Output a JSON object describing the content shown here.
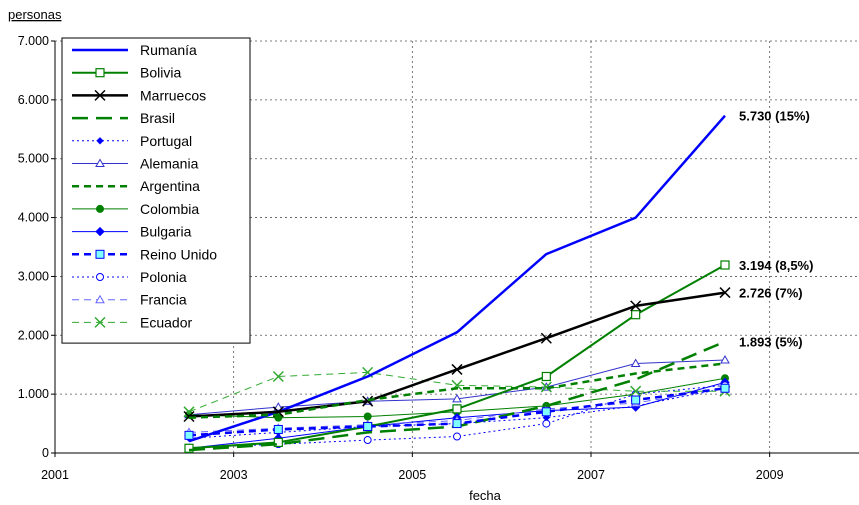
{
  "chart_data": {
    "type": "line",
    "y_unit": "personas",
    "xlabel": "fecha",
    "xlim": [
      2001,
      2010
    ],
    "ylim": [
      0,
      7000
    ],
    "x_ticks": [
      2001,
      2003,
      2005,
      2007,
      2009
    ],
    "x_tick_labels": [
      "2001",
      "2003",
      "2005",
      "2007",
      "2009"
    ],
    "y_ticks": [
      0,
      1000,
      2000,
      3000,
      4000,
      5000,
      6000,
      7000
    ],
    "y_tick_labels": [
      "0",
      "1.000",
      "2.000",
      "3.000",
      "4.000",
      "5.000",
      "6.000",
      "7.000"
    ],
    "grid": "dotted",
    "legend_position": "top-left",
    "x": [
      2002.5,
      2003.5,
      2004.5,
      2005.5,
      2006.5,
      2007.5,
      2008.5
    ],
    "series": [
      {
        "name": "Rumanía",
        "color": "#0000ff",
        "style": "solid",
        "marker": "none",
        "width": 2.5,
        "values": [
          200,
          700,
          1300,
          2050,
          3380,
          4000,
          5730
        ]
      },
      {
        "name": "Bolivia",
        "color": "#008000",
        "style": "solid",
        "marker": "square-open",
        "width": 2,
        "values": [
          80,
          180,
          450,
          750,
          1300,
          2350,
          3194
        ]
      },
      {
        "name": "Marruecos",
        "color": "#000000",
        "style": "solid",
        "marker": "x",
        "width": 2.5,
        "values": [
          620,
          700,
          880,
          1420,
          1950,
          2500,
          2726
        ]
      },
      {
        "name": "Brasil",
        "color": "#008000",
        "style": "longdash",
        "marker": "none",
        "width": 2.5,
        "values": [
          50,
          150,
          350,
          450,
          800,
          1250,
          1893
        ]
      },
      {
        "name": "Portugal",
        "color": "#0000ff",
        "style": "dotted",
        "marker": "diamond-small",
        "width": 1,
        "values": [
          250,
          350,
          450,
          500,
          600,
          800,
          1100
        ]
      },
      {
        "name": "Alemania",
        "color": "#3333cc",
        "style": "solid",
        "marker": "triangle-open",
        "width": 1,
        "values": [
          650,
          780,
          880,
          920,
          1120,
          1520,
          1580
        ]
      },
      {
        "name": "Argentina",
        "color": "#008000",
        "style": "dashed",
        "marker": "none",
        "width": 2.5,
        "values": [
          600,
          650,
          900,
          1100,
          1100,
          1350,
          1520
        ]
      },
      {
        "name": "Colombia",
        "color": "#008000",
        "style": "solid",
        "marker": "circle",
        "width": 1,
        "values": [
          650,
          600,
          620,
          700,
          800,
          1000,
          1270
        ]
      },
      {
        "name": "Bulgaria",
        "color": "#0000ff",
        "style": "solid",
        "marker": "diamond",
        "width": 1,
        "values": [
          80,
          250,
          450,
          600,
          720,
          780,
          1200
        ]
      },
      {
        "name": "Reino Unido",
        "color": "#0000ff",
        "style": "dashed",
        "marker": "square-cyan",
        "width": 2.5,
        "values": [
          300,
          400,
          450,
          500,
          700,
          900,
          1100
        ]
      },
      {
        "name": "Polonia",
        "color": "#0000ff",
        "style": "dotted",
        "marker": "circle-open",
        "width": 1,
        "values": [
          90,
          150,
          220,
          280,
          500,
          1000,
          1150
        ]
      },
      {
        "name": "Francia",
        "color": "#6666ff",
        "style": "dashed",
        "marker": "triangle-open",
        "width": 1,
        "values": [
          350,
          420,
          480,
          550,
          750,
          850,
          1100
        ]
      },
      {
        "name": "Ecuador",
        "color": "#33aa33",
        "style": "dashed",
        "marker": "x",
        "width": 1,
        "values": [
          700,
          1300,
          1370,
          1150,
          1120,
          1050,
          1050
        ]
      }
    ],
    "annotations": [
      {
        "text": "5.730 (15%)",
        "x": 2008.5,
        "y": 5730
      },
      {
        "text": "3.194 (8,5%)",
        "x": 2008.5,
        "y": 3194
      },
      {
        "text": "2.726 (7%)",
        "x": 2008.5,
        "y": 2726
      },
      {
        "text": "1.893 (5%)",
        "x": 2008.5,
        "y": 1893
      }
    ]
  }
}
